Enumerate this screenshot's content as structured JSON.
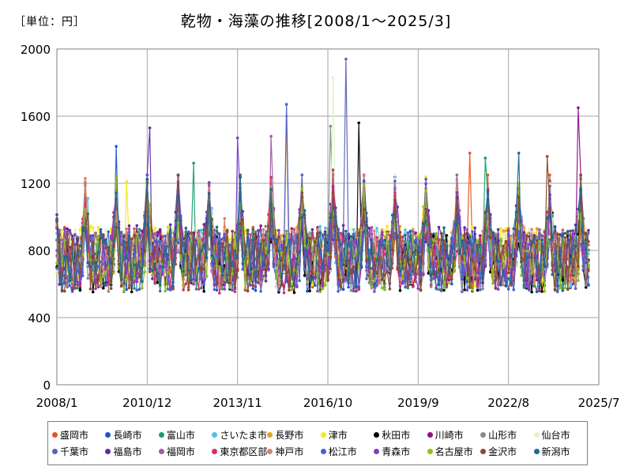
{
  "unit_label": "［単位：円］",
  "chart_data": {
    "type": "line",
    "title": "乾物・海藻の推移[2008/1～2025/3]",
    "xlabel": "",
    "ylabel": "円",
    "x_range": [
      "2008/1",
      "2025/7"
    ],
    "x_tick_labels": [
      "2008/1",
      "2010/12",
      "2013/11",
      "2016/10",
      "2019/9",
      "2022/8",
      "2025/7"
    ],
    "y_ticks": [
      0,
      400,
      800,
      1200,
      1600,
      2000
    ],
    "ylim": [
      0,
      2000
    ],
    "grid": true,
    "legend_position": "bottom",
    "baseline_range": [
      550,
      950
    ],
    "series": [
      {
        "name": "盛岡市",
        "color": "#e8561e",
        "peaks": [
          {
            "date": "2008/1",
            "value": 990
          },
          {
            "date": "2021/5",
            "value": 1380
          }
        ]
      },
      {
        "name": "長崎市",
        "color": "#1f57c9",
        "peaks": [
          {
            "date": "2009/12",
            "value": 1420
          }
        ]
      },
      {
        "name": "富山市",
        "color": "#1a9d6e",
        "peaks": [
          {
            "date": "2012/6",
            "value": 1320
          },
          {
            "date": "2021/11",
            "value": 1350
          }
        ]
      },
      {
        "name": "さいたま市",
        "color": "#4fc0ea",
        "peaks": [
          {
            "date": "2009/1",
            "value": 1110
          }
        ]
      },
      {
        "name": "長野市",
        "color": "#e8a51c",
        "peaks": [
          {
            "date": "2015/6",
            "value": 1600
          }
        ]
      },
      {
        "name": "津市",
        "color": "#f3ea1a",
        "peaks": [
          {
            "date": "2010/4",
            "value": 1210
          }
        ]
      },
      {
        "name": "秋田市",
        "color": "#000000",
        "peaks": [
          {
            "date": "2017/10",
            "value": 1560
          }
        ]
      },
      {
        "name": "川崎市",
        "color": "#8f1189",
        "peaks": [
          {
            "date": "2024/11",
            "value": 1650
          }
        ]
      },
      {
        "name": "山形市",
        "color": "#8a8a8a",
        "peaks": [
          {
            "date": "2016/11",
            "value": 1540
          }
        ]
      },
      {
        "name": "仙台市",
        "color": "#e0f5c9",
        "peaks": [
          {
            "date": "2016/12",
            "value": 1830
          }
        ]
      },
      {
        "name": "千葉市",
        "color": "#5b64b8",
        "peaks": [
          {
            "date": "2017/5",
            "value": 1940
          }
        ]
      },
      {
        "name": "福島市",
        "color": "#5b2ea6",
        "peaks": [
          {
            "date": "2011/1",
            "value": 1530
          }
        ]
      },
      {
        "name": "福岡市",
        "color": "#a05aa8",
        "peaks": [
          {
            "date": "2014/12",
            "value": 1480
          }
        ]
      },
      {
        "name": "東京都区部",
        "color": "#d62f64",
        "peaks": [
          {
            "date": "2016/12",
            "value": 1280
          }
        ]
      },
      {
        "name": "神戸市",
        "color": "#d88070",
        "peaks": [
          {
            "date": "2013/6",
            "value": 990
          }
        ]
      },
      {
        "name": "松江市",
        "color": "#4a5fd0",
        "peaks": [
          {
            "date": "2015/6",
            "value": 1670
          }
        ]
      },
      {
        "name": "青森市",
        "color": "#7b3fcc",
        "peaks": [
          {
            "date": "2013/11",
            "value": 1470
          }
        ]
      },
      {
        "name": "名古屋市",
        "color": "#8fbf1f",
        "peaks": [
          {
            "date": "2022/12",
            "value": 1200
          }
        ]
      },
      {
        "name": "金沢市",
        "color": "#8a4a2a",
        "peaks": [
          {
            "date": "2023/11",
            "value": 1360
          }
        ]
      },
      {
        "name": "新潟市",
        "color": "#1d6a8f",
        "peaks": [
          {
            "date": "2022/12",
            "value": 1380
          }
        ]
      }
    ]
  }
}
